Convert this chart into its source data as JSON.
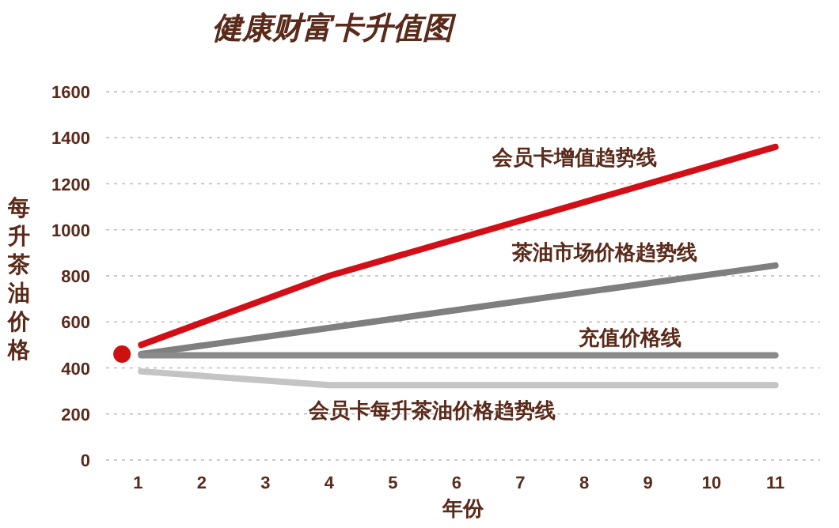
{
  "chart_data": {
    "type": "line",
    "title": "健康财富卡升值图",
    "xlabel": "年份",
    "ylabel": "每升茶油价格",
    "xlim": [
      0.5,
      11.7
    ],
    "xticks": [
      1,
      2,
      3,
      4,
      5,
      6,
      7,
      8,
      9,
      10,
      11
    ],
    "ylim": [
      0,
      1600
    ],
    "yticks": [
      0,
      200,
      400,
      600,
      800,
      1000,
      1200,
      1400,
      1600
    ],
    "grid": "y",
    "marker": "none",
    "line_style": "solid",
    "series": [
      {
        "name": "会员卡增值趋势线",
        "color": "#d20f17",
        "x": [
          1.05,
          4,
          11
        ],
        "values": [
          500,
          800,
          1360
        ]
      },
      {
        "name": "茶油市场价格趋势线",
        "color": "#7f7f7f",
        "x": [
          1.05,
          11
        ],
        "values": [
          460,
          845
        ]
      },
      {
        "name": "充值价格线",
        "color": "#8a8a8a",
        "x": [
          1.05,
          11
        ],
        "values": [
          455,
          455
        ]
      },
      {
        "name": "会员卡每升茶油价格趋势线",
        "color": "#c4c4c4",
        "x": [
          1.05,
          4,
          11
        ],
        "values": [
          385,
          325,
          325
        ]
      },
      {
        "type": "scatter",
        "marker": "circle",
        "color": "#cc1111",
        "x": [
          0.75
        ],
        "values": [
          460
        ]
      }
    ]
  }
}
